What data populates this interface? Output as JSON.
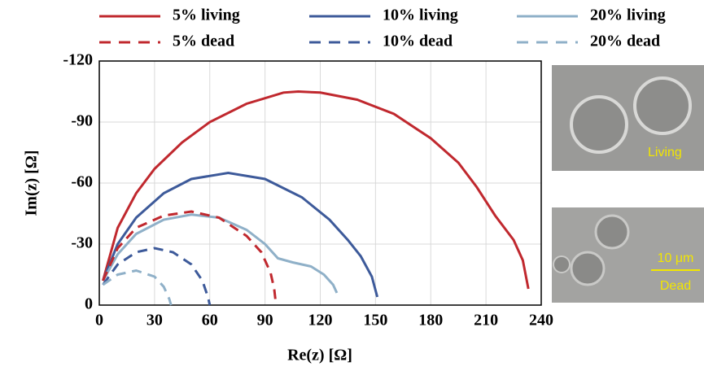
{
  "chart_data": {
    "type": "line",
    "x_label": "Re(z) [Ω]",
    "y_label": "Im(z) [Ω]",
    "xlim": [
      0,
      240
    ],
    "xticks": [
      0,
      30,
      60,
      90,
      120,
      150,
      180,
      210,
      240
    ],
    "ylim": [
      0,
      -120
    ],
    "yticks": [
      0,
      -30,
      -60,
      -90,
      -120
    ],
    "grid": true,
    "series": [
      {
        "name": "5% living",
        "color": "#c0282e",
        "linestyle": "solid",
        "x": [
          2,
          10,
          20,
          30,
          45,
          60,
          80,
          100,
          108,
          120,
          140,
          160,
          180,
          195,
          205,
          215,
          225,
          230,
          233
        ],
        "values": [
          -12,
          -38,
          -55,
          -67,
          -80,
          -90,
          -99,
          -104.5,
          -105,
          -104.5,
          -101,
          -94,
          -82,
          -70,
          -58,
          -44,
          -32,
          -22,
          -8
        ]
      },
      {
        "name": "10% living",
        "color": "#3d5a9a",
        "linestyle": "solid",
        "x": [
          2,
          10,
          20,
          35,
          50,
          70,
          90,
          110,
          125,
          135,
          142,
          148,
          151
        ],
        "values": [
          -12,
          -30,
          -43,
          -55,
          -62,
          -65,
          -62,
          -53,
          -42,
          -32,
          -24,
          -14,
          -4
        ]
      },
      {
        "name": "20% living",
        "color": "#8fb0c8",
        "linestyle": "solid",
        "x": [
          2,
          10,
          20,
          35,
          50,
          65,
          80,
          90,
          97,
          105,
          115,
          122,
          127,
          129
        ],
        "values": [
          -12,
          -25,
          -35,
          -42,
          -44.5,
          -43,
          -37,
          -30,
          -23,
          -21,
          -19,
          -15,
          -10,
          -6
        ]
      },
      {
        "name": "5% dead",
        "color": "#c0282e",
        "linestyle": "dashed",
        "x": [
          2,
          10,
          20,
          35,
          50,
          65,
          80,
          88,
          93,
          95,
          96
        ],
        "values": [
          -12,
          -28,
          -38,
          -44,
          -46,
          -43,
          -34,
          -26,
          -16,
          -8,
          0
        ]
      },
      {
        "name": "10% dead",
        "color": "#3d5a9a",
        "linestyle": "dashed",
        "x": [
          2,
          10,
          20,
          30,
          40,
          50,
          56,
          59,
          60
        ],
        "values": [
          -10,
          -20,
          -26,
          -28,
          -26,
          -20,
          -12,
          -4,
          0
        ]
      },
      {
        "name": "20% dead",
        "color": "#8fb0c8",
        "linestyle": "dashed",
        "x": [
          2,
          10,
          20,
          30,
          35,
          38,
          39
        ],
        "values": [
          -10,
          -15,
          -17,
          -14,
          -9,
          -3,
          0
        ]
      }
    ]
  },
  "micrographs": [
    {
      "caption": "Living"
    },
    {
      "scale_bar": "10 μm",
      "caption": "Dead"
    }
  ]
}
